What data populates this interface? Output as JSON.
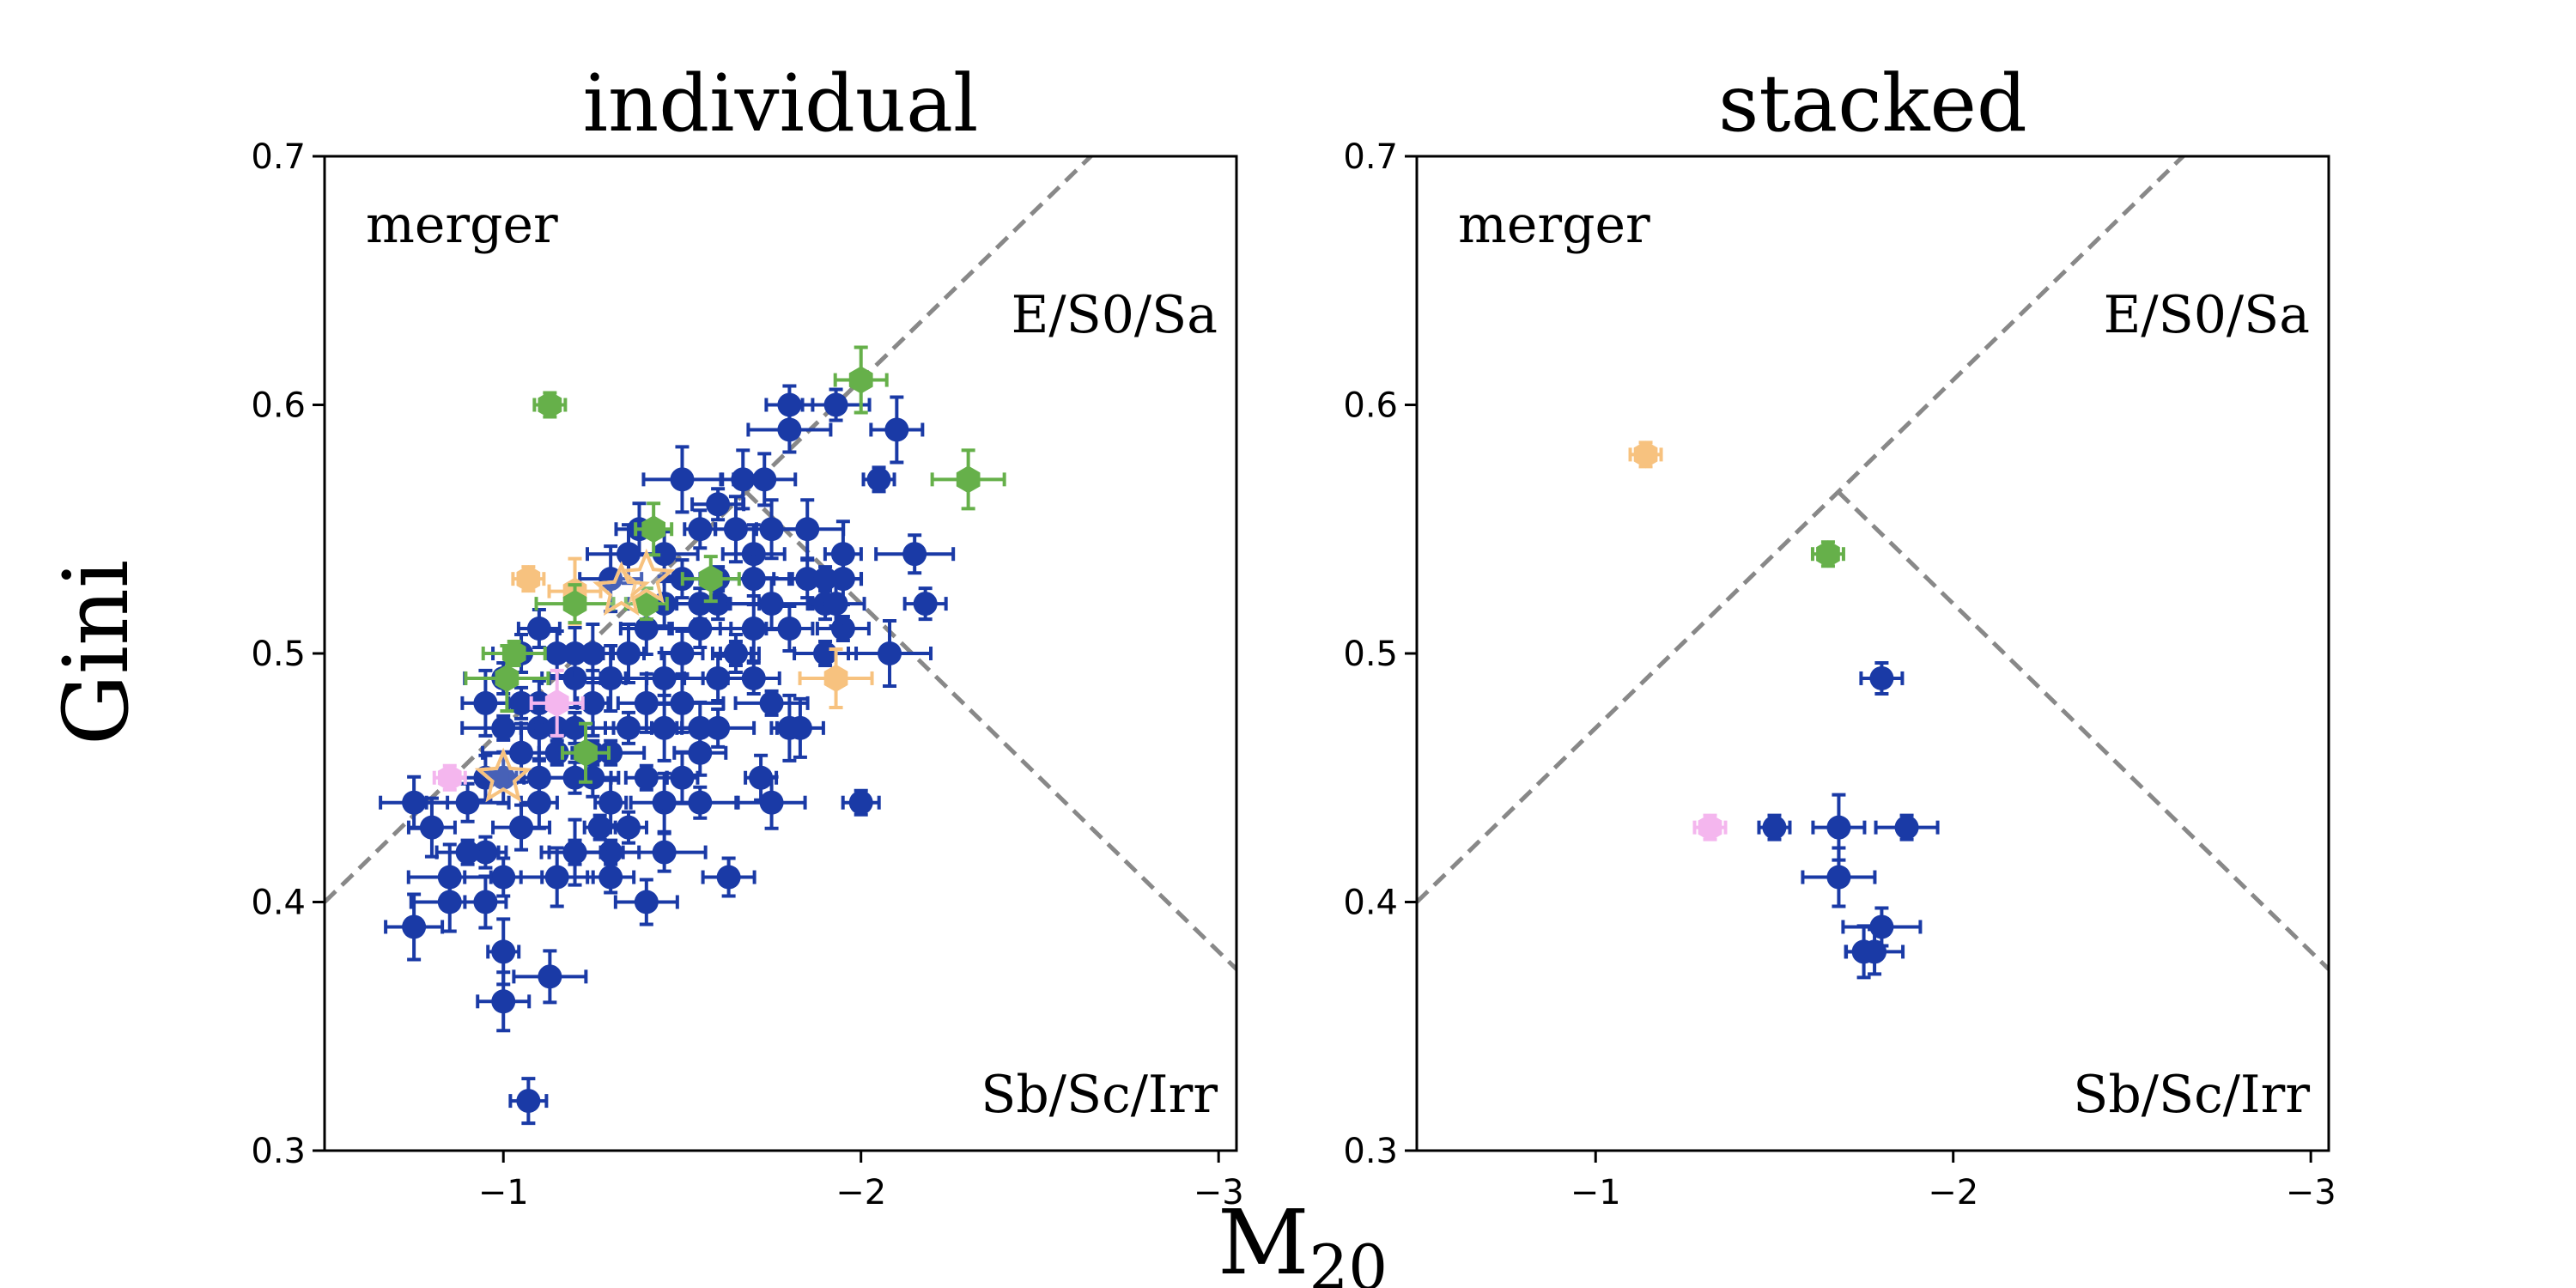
{
  "chart_data": [
    {
      "type": "scatter",
      "title": "individual",
      "xlim": [
        -0.5,
        -3.05
      ],
      "ylim": [
        0.3,
        0.7
      ],
      "xticks": [
        -1,
        -2,
        -3
      ],
      "xtick_labels": [
        "−1",
        "−2",
        "−3"
      ],
      "yticks": [
        0.3,
        0.4,
        0.5,
        0.6,
        0.7
      ],
      "ytick_labels": [
        "0.3",
        "0.4",
        "0.5",
        "0.6",
        "0.7"
      ],
      "region_labels": {
        "merger": "merger",
        "early": "E/S0/Sa",
        "late": "Sb/Sc/Irr"
      },
      "boundaries": {
        "merger_line": {
          "slope": -0.14,
          "intercept": 0.33
        },
        "early_late_line": {
          "slope": 0.14,
          "intercept": 0.8
        },
        "style": "dashed"
      },
      "series": [
        {
          "name": "blue",
          "color": "#1a3aa6",
          "marker": "circle",
          "points": [
            [
              -1.27,
              0.43
            ],
            [
              -1.2,
              0.42
            ],
            [
              -1.15,
              0.41
            ],
            [
              -1.1,
              0.44
            ],
            [
              -1.05,
              0.43
            ],
            [
              -1.0,
              0.41
            ],
            [
              -0.95,
              0.42
            ],
            [
              -0.9,
              0.42
            ],
            [
              -0.85,
              0.41
            ],
            [
              -0.8,
              0.43
            ],
            [
              -0.75,
              0.44
            ],
            [
              -1.3,
              0.44
            ],
            [
              -1.25,
              0.45
            ],
            [
              -1.2,
              0.45
            ],
            [
              -1.15,
              0.46
            ],
            [
              -1.1,
              0.47
            ],
            [
              -1.05,
              0.46
            ],
            [
              -1.0,
              0.45
            ],
            [
              -0.95,
              0.45
            ],
            [
              -0.9,
              0.44
            ],
            [
              -1.35,
              0.47
            ],
            [
              -1.3,
              0.46
            ],
            [
              -1.25,
              0.48
            ],
            [
              -1.2,
              0.49
            ],
            [
              -1.15,
              0.47
            ],
            [
              -1.1,
              0.48
            ],
            [
              -1.05,
              0.5
            ],
            [
              -1.0,
              0.49
            ],
            [
              -1.4,
              0.45
            ],
            [
              -1.45,
              0.47
            ],
            [
              -1.5,
              0.48
            ],
            [
              -1.55,
              0.47
            ],
            [
              -1.6,
              0.49
            ],
            [
              -1.65,
              0.5
            ],
            [
              -1.7,
              0.49
            ],
            [
              -1.75,
              0.48
            ],
            [
              -1.8,
              0.47
            ],
            [
              -1.4,
              0.48
            ],
            [
              -1.45,
              0.49
            ],
            [
              -1.5,
              0.5
            ],
            [
              -1.55,
              0.51
            ],
            [
              -1.6,
              0.52
            ],
            [
              -1.65,
              0.5
            ],
            [
              -1.7,
              0.51
            ],
            [
              -1.35,
              0.5
            ],
            [
              -1.4,
              0.51
            ],
            [
              -1.45,
              0.52
            ],
            [
              -1.5,
              0.53
            ],
            [
              -1.55,
              0.52
            ],
            [
              -1.6,
              0.53
            ],
            [
              -1.65,
              0.55
            ],
            [
              -1.7,
              0.54
            ],
            [
              -1.75,
              0.52
            ],
            [
              -1.8,
              0.51
            ],
            [
              -1.85,
              0.53
            ],
            [
              -1.9,
              0.52
            ],
            [
              -1.95,
              0.51
            ],
            [
              -1.3,
              0.49
            ],
            [
              -1.25,
              0.5
            ],
            [
              -1.2,
              0.5
            ],
            [
              -1.15,
              0.5
            ],
            [
              -1.1,
              0.51
            ],
            [
              -1.05,
              0.48
            ],
            [
              -1.0,
              0.47
            ],
            [
              -0.95,
              0.48
            ],
            [
              -1.45,
              0.44
            ],
            [
              -1.5,
              0.45
            ],
            [
              -1.55,
              0.46
            ],
            [
              -1.6,
              0.47
            ],
            [
              -1.35,
              0.43
            ],
            [
              -1.3,
              0.42
            ],
            [
              -1.5,
              0.57
            ],
            [
              -1.67,
              0.57
            ],
            [
              -1.73,
              0.57
            ],
            [
              -1.8,
              0.59
            ],
            [
              -1.8,
              0.6
            ],
            [
              -1.93,
              0.6
            ],
            [
              -2.05,
              0.57
            ],
            [
              -2.1,
              0.59
            ],
            [
              -1.85,
              0.55
            ],
            [
              -1.95,
              0.53
            ],
            [
              -1.93,
              0.52
            ],
            [
              -2.15,
              0.54
            ],
            [
              -2.18,
              0.52
            ],
            [
              -1.9,
              0.5
            ],
            [
              -2.08,
              0.5
            ],
            [
              -1.83,
              0.47
            ],
            [
              -1.75,
              0.44
            ],
            [
              -1.72,
              0.45
            ],
            [
              -1.63,
              0.41
            ],
            [
              -1.55,
              0.44
            ],
            [
              -2.0,
              0.44
            ],
            [
              -0.75,
              0.39
            ],
            [
              -0.85,
              0.4
            ],
            [
              -0.95,
              0.4
            ],
            [
              -1.4,
              0.4
            ],
            [
              -1.45,
              0.42
            ],
            [
              -1.3,
              0.41
            ],
            [
              -1.2,
              0.42
            ],
            [
              -1.0,
              0.38
            ],
            [
              -1.0,
              0.36
            ],
            [
              -1.13,
              0.37
            ],
            [
              -1.07,
              0.32
            ],
            [
              -1.1,
              0.45
            ],
            [
              -1.2,
              0.47
            ],
            [
              -1.25,
              0.46
            ],
            [
              -1.3,
              0.53
            ],
            [
              -1.35,
              0.54
            ],
            [
              -1.38,
              0.55
            ],
            [
              -1.45,
              0.54
            ],
            [
              -1.55,
              0.55
            ],
            [
              -1.6,
              0.56
            ],
            [
              -1.9,
              0.53
            ],
            [
              -1.95,
              0.54
            ],
            [
              -1.75,
              0.55
            ],
            [
              -1.7,
              0.53
            ]
          ]
        },
        {
          "name": "green",
          "color": "#66b04a",
          "marker": "hexagon",
          "points": [
            [
              -1.13,
              0.6
            ],
            [
              -2.0,
              0.61
            ],
            [
              -2.3,
              0.57
            ],
            [
              -1.42,
              0.55
            ],
            [
              -1.58,
              0.53
            ],
            [
              -1.2,
              0.52
            ],
            [
              -1.4,
              0.52
            ],
            [
              -1.03,
              0.5
            ],
            [
              -1.01,
              0.49
            ],
            [
              -1.23,
              0.46
            ]
          ]
        },
        {
          "name": "orange",
          "color": "#f7c27f",
          "marker": "hexagon",
          "points": [
            [
              -1.07,
              0.53
            ],
            [
              -1.2,
              0.525
            ],
            [
              -1.93,
              0.49
            ]
          ]
        },
        {
          "name": "pink",
          "color": "#f4b6ee",
          "marker": "hexagon",
          "points": [
            [
              -0.85,
              0.45
            ],
            [
              -1.15,
              0.48
            ]
          ]
        },
        {
          "name": "stars",
          "color": "#ffffff",
          "marker": "star",
          "points": [
            [
              -1.0,
              0.45
            ],
            [
              -1.4,
              0.53
            ],
            [
              -1.33,
              0.525
            ]
          ]
        }
      ]
    },
    {
      "type": "scatter",
      "title": "stacked",
      "xlim": [
        -0.5,
        -3.05
      ],
      "ylim": [
        0.3,
        0.7
      ],
      "xticks": [
        -1,
        -2,
        -3
      ],
      "xtick_labels": [
        "−1",
        "−2",
        "−3"
      ],
      "yticks": [
        0.3,
        0.4,
        0.5,
        0.6,
        0.7
      ],
      "ytick_labels": [
        "0.3",
        "0.4",
        "0.5",
        "0.6",
        "0.7"
      ],
      "region_labels": {
        "merger": "merger",
        "early": "E/S0/Sa",
        "late": "Sb/Sc/Irr"
      },
      "boundaries": {
        "merger_line": {
          "slope": -0.14,
          "intercept": 0.33
        },
        "early_late_line": {
          "slope": 0.14,
          "intercept": 0.8
        },
        "style": "dashed"
      },
      "series": [
        {
          "name": "orange",
          "color": "#f7c27f",
          "marker": "hexagon",
          "points": [
            [
              -1.14,
              0.58
            ]
          ]
        },
        {
          "name": "green",
          "color": "#66b04a",
          "marker": "hexagon",
          "points": [
            [
              -1.65,
              0.54
            ]
          ]
        },
        {
          "name": "pink",
          "color": "#f4b6ee",
          "marker": "hexagon",
          "points": [
            [
              -1.32,
              0.43
            ]
          ]
        },
        {
          "name": "blue",
          "color": "#1a3aa6",
          "marker": "circle",
          "points": [
            [
              -1.5,
              0.43
            ],
            [
              -1.68,
              0.43
            ],
            [
              -1.68,
              0.41
            ],
            [
              -1.75,
              0.38
            ],
            [
              -1.78,
              0.38
            ],
            [
              -1.8,
              0.39
            ],
            [
              -1.8,
              0.49
            ],
            [
              -1.87,
              0.43
            ]
          ]
        }
      ]
    }
  ],
  "figure": {
    "xlabel_main": "M",
    "xlabel_sub": "20",
    "ylabel": "Gini"
  }
}
